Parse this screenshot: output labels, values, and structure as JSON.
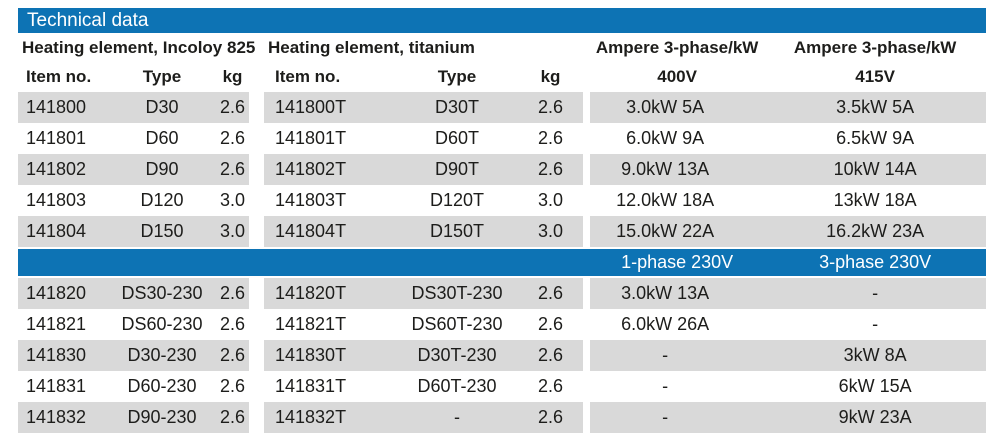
{
  "title": "Technical data",
  "colors": {
    "accent_blue": "#0d73b4",
    "stripe_gray": "#d9d9d9",
    "text": "#1d1d1b",
    "header_text_on_blue": "#ffffff"
  },
  "groups": [
    {
      "label": "Heating element, Incoloy 825",
      "columns": [
        "Item no.",
        "Type",
        "kg"
      ]
    },
    {
      "label": "Heating element, titanium",
      "columns": [
        "Item no.",
        "Type",
        "kg"
      ]
    },
    {
      "label_400": "Ampere 3-phase/kW",
      "label_415": "Ampere 3-phase/kW",
      "columns": [
        "400V",
        "415V"
      ]
    }
  ],
  "divider": {
    "label_left": "1-phase 230V",
    "label_right": "3-phase 230V"
  },
  "rows_section1": [
    [
      "141800",
      "D30",
      "2.6",
      "141800T",
      "D30T",
      "2.6",
      "3.0kW 5A",
      "3.5kW 5A"
    ],
    [
      "141801",
      "D60",
      "2.6",
      "141801T",
      "D60T",
      "2.6",
      "6.0kW 9A",
      "6.5kW 9A"
    ],
    [
      "141802",
      "D90",
      "2.6",
      "141802T",
      "D90T",
      "2.6",
      "9.0kW 13A",
      "10kW 14A"
    ],
    [
      "141803",
      "D120",
      "3.0",
      "141803T",
      "D120T",
      "3.0",
      "12.0kW 18A",
      "13kW 18A"
    ],
    [
      "141804",
      "D150",
      "3.0",
      "141804T",
      "D150T",
      "3.0",
      "15.0kW 22A",
      "16.2kW 23A"
    ]
  ],
  "rows_section2": [
    [
      "141820",
      "DS30-230",
      "2.6",
      "141820T",
      "DS30T-230",
      "2.6",
      "3.0kW 13A",
      "-"
    ],
    [
      "141821",
      "DS60-230",
      "2.6",
      "141821T",
      "DS60T-230",
      "2.6",
      "6.0kW 26A",
      "-"
    ],
    [
      "141830",
      "D30-230",
      "2.6",
      "141830T",
      "D30T-230",
      "2.6",
      "-",
      "3kW 8A"
    ],
    [
      "141831",
      "D60-230",
      "2.6",
      "141831T",
      "D60T-230",
      "2.6",
      "-",
      "6kW 15A"
    ],
    [
      "141832",
      "D90-230",
      "2.6",
      "141832T",
      "-",
      "2.6",
      "-",
      "9kW 23A"
    ]
  ]
}
